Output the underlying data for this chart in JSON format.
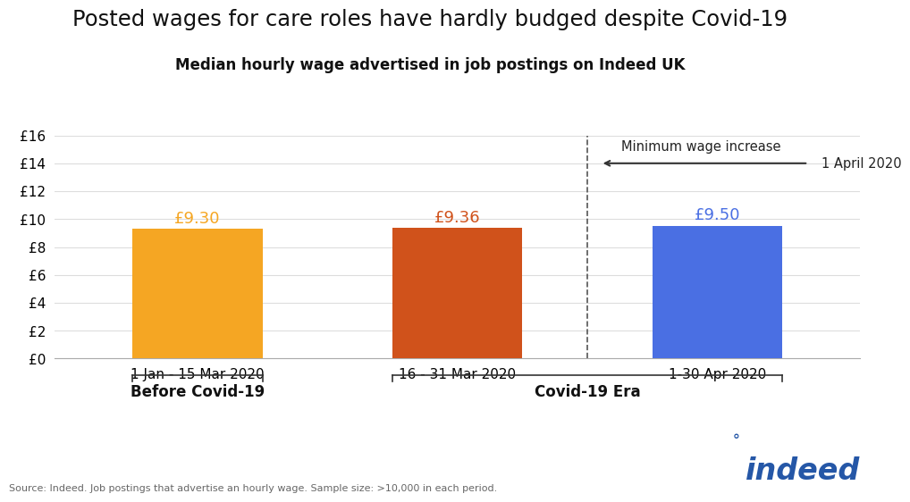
{
  "title": "Posted wages for care roles have hardly budged despite Covid-19",
  "subtitle": "Median hourly wage advertised in job postings on Indeed UK",
  "categories": [
    "1 Jan - 15 Mar 2020",
    "16 - 31 Mar 2020",
    "1-30 Apr 2020"
  ],
  "values": [
    9.3,
    9.36,
    9.5
  ],
  "bar_colors": [
    "#F5A623",
    "#D0521B",
    "#4A6FE3"
  ],
  "value_labels": [
    "£9.30",
    "£9.36",
    "£9.50"
  ],
  "value_label_colors": [
    "#F5A623",
    "#D0521B",
    "#4A6FE3"
  ],
  "ylim": [
    0,
    16
  ],
  "yticks": [
    0,
    2,
    4,
    6,
    8,
    10,
    12,
    14,
    16
  ],
  "ytick_labels": [
    "£0",
    "£2",
    "£4",
    "£6",
    "£8",
    "£10",
    "£12",
    "£14",
    "£16"
  ],
  "group_labels": [
    "Before Covid-19",
    "Covid-19 Era"
  ],
  "dashed_line_x": 1.5,
  "annotation_line1": "Minimum wage increase",
  "annotation_line2": "1 April 2020",
  "source_text": "Source: Indeed. Job postings that advertise an hourly wage. Sample size: >10,000 in each period.",
  "background_color": "#FFFFFF",
  "bar_width": 0.5,
  "indeed_logo_color": "#2557A7",
  "indeed_logo_text": "indeed"
}
